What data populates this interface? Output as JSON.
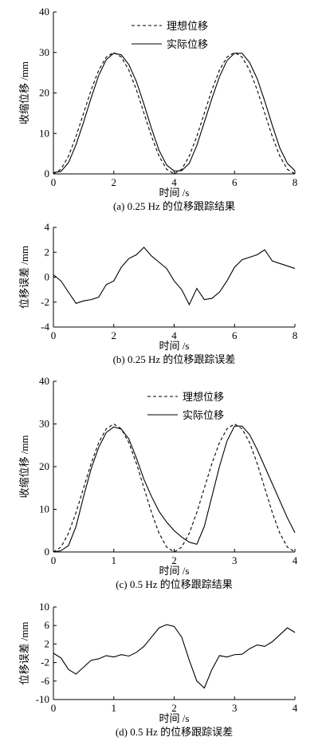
{
  "chart_data": [
    {
      "type": "line",
      "title": "(a) 0.25 Hz 的位移跟踪结果",
      "xlabel": "时间 /s",
      "ylabel": "收缩位移 /mm",
      "x": [
        0,
        0.25,
        0.5,
        0.75,
        1,
        1.25,
        1.5,
        1.75,
        2,
        2.25,
        2.5,
        2.75,
        3,
        3.25,
        3.5,
        3.75,
        4,
        4.25,
        4.5,
        4.75,
        5,
        5.25,
        5.5,
        5.75,
        6,
        6.25,
        6.5,
        6.75,
        7,
        7.25,
        7.5,
        7.75,
        8
      ],
      "series": [
        {
          "name": "理想位移",
          "color": "#000000",
          "dash": "dashed",
          "values": [
            0,
            1.14,
            4.39,
            9.26,
            15,
            20.74,
            25.61,
            28.86,
            30,
            28.86,
            25.61,
            20.74,
            15,
            9.26,
            4.39,
            1.14,
            0,
            1.14,
            4.39,
            9.26,
            15,
            20.74,
            25.61,
            28.86,
            30,
            28.86,
            25.61,
            20.74,
            15,
            9.26,
            4.39,
            1.14,
            0
          ]
        },
        {
          "name": "实际位移",
          "color": "#000000",
          "dash": "solid",
          "values": [
            0.3,
            0.6,
            2.8,
            7.2,
            12.8,
            18.8,
            24.3,
            28.2,
            29.8,
            29.4,
            27,
            22.8,
            17.2,
            11.2,
            5.8,
            2.2,
            0.7,
            0.8,
            2.6,
            7,
            12.8,
            18.6,
            24,
            28,
            29.8,
            29.8,
            27.5,
            23.5,
            18,
            12,
            6.4,
            2.6,
            0.8
          ]
        }
      ],
      "xlim": [
        0,
        8
      ],
      "ylim": [
        0,
        40
      ],
      "xticks": [
        0,
        2,
        4,
        6,
        8
      ],
      "yticks": [
        0,
        10,
        20,
        30,
        40
      ],
      "legend": "upper center"
    },
    {
      "type": "line",
      "title": "(b) 0.25 Hz 的位移跟踪误差",
      "xlabel": "时间 /s",
      "ylabel": "位移误差 /mm",
      "x": [
        0,
        0.25,
        0.5,
        0.75,
        1,
        1.25,
        1.5,
        1.75,
        2,
        2.25,
        2.5,
        2.75,
        3,
        3.25,
        3.5,
        3.75,
        4,
        4.25,
        4.5,
        4.75,
        5,
        5.25,
        5.5,
        5.75,
        6,
        6.25,
        6.5,
        6.75,
        7,
        7.25,
        7.5,
        7.75,
        8
      ],
      "values": [
        0.2,
        -0.3,
        -1.2,
        -2.1,
        -1.9,
        -1.8,
        -1.6,
        -0.6,
        -0.3,
        0.8,
        1.5,
        1.8,
        2.4,
        1.7,
        1.2,
        0.7,
        -0.3,
        -1,
        -2.2,
        -0.9,
        -1.8,
        -1.7,
        -1.2,
        -0.3,
        0.8,
        1.4,
        1.6,
        1.8,
        2.2,
        1.3,
        1.1,
        0.9,
        0.7
      ],
      "color": "#000000",
      "xlim": [
        0,
        8
      ],
      "ylim": [
        -4,
        4
      ],
      "xticks": [
        0,
        2,
        4,
        6,
        8
      ],
      "yticks": [
        -4,
        -2,
        0,
        2,
        4
      ]
    },
    {
      "type": "line",
      "title": "(c) 0.5 Hz 的位移跟踪结果",
      "xlabel": "时间 /s",
      "ylabel": "收缩位移 /mm",
      "x": [
        0,
        0.125,
        0.25,
        0.375,
        0.5,
        0.625,
        0.75,
        0.875,
        1,
        1.125,
        1.25,
        1.375,
        1.5,
        1.625,
        1.75,
        1.875,
        2,
        2.125,
        2.25,
        2.375,
        2.5,
        2.625,
        2.75,
        2.875,
        3,
        3.125,
        3.25,
        3.375,
        3.5,
        3.625,
        3.75,
        3.875,
        4
      ],
      "series": [
        {
          "name": "理想位移",
          "color": "#000000",
          "dash": "dashed",
          "values": [
            0,
            1.14,
            4.39,
            9.26,
            15,
            20.74,
            25.61,
            28.86,
            30,
            28.86,
            25.61,
            20.74,
            15,
            9.26,
            4.39,
            1.14,
            0,
            1.14,
            4.39,
            9.26,
            15,
            20.74,
            25.61,
            28.86,
            30,
            28.86,
            25.61,
            20.74,
            15,
            9.26,
            4.39,
            1.14,
            0
          ]
        },
        {
          "name": "实际位移",
          "color": "#000000",
          "dash": "solid",
          "values": [
            0,
            0.3,
            1.5,
            6,
            13,
            19.5,
            24.5,
            28,
            29.3,
            28.8,
            26.5,
            22,
            17,
            13,
            9.5,
            7,
            5,
            3.5,
            2.3,
            1.8,
            6,
            13,
            20,
            26,
            29.5,
            29.5,
            27.5,
            24,
            20,
            16,
            12,
            8,
            4.5
          ]
        }
      ],
      "xlim": [
        0,
        4
      ],
      "ylim": [
        0,
        40
      ],
      "xticks": [
        0,
        1,
        2,
        3,
        4
      ],
      "yticks": [
        0,
        10,
        20,
        30,
        40
      ],
      "legend": "upper center"
    },
    {
      "type": "line",
      "title": "(d) 0.5 Hz 的位移跟踪误差",
      "xlabel": "时间 /s",
      "ylabel": "位移误差 /mm",
      "x": [
        0,
        0.125,
        0.25,
        0.375,
        0.5,
        0.625,
        0.75,
        0.875,
        1,
        1.125,
        1.25,
        1.375,
        1.5,
        1.625,
        1.75,
        1.875,
        2,
        2.125,
        2.25,
        2.375,
        2.5,
        2.625,
        2.75,
        2.875,
        3,
        3.125,
        3.25,
        3.375,
        3.5,
        3.625,
        3.75,
        3.875,
        4
      ],
      "values": [
        0,
        -1,
        -3.5,
        -4.5,
        -3,
        -1.5,
        -1.2,
        -0.5,
        -0.8,
        -0.3,
        -0.6,
        0.2,
        1.5,
        3.5,
        5.5,
        6.2,
        5.8,
        3.5,
        -1.5,
        -6,
        -7.5,
        -3.5,
        -0.5,
        -0.8,
        -0.3,
        -0.2,
        1,
        1.8,
        1.5,
        2.5,
        4,
        5.5,
        4.5
      ],
      "color": "#000000",
      "xlim": [
        0,
        4
      ],
      "ylim": [
        -10,
        10
      ],
      "xticks": [
        0,
        1,
        2,
        3,
        4
      ],
      "yticks": [
        -10,
        -6,
        -2,
        2,
        6,
        10
      ]
    }
  ]
}
